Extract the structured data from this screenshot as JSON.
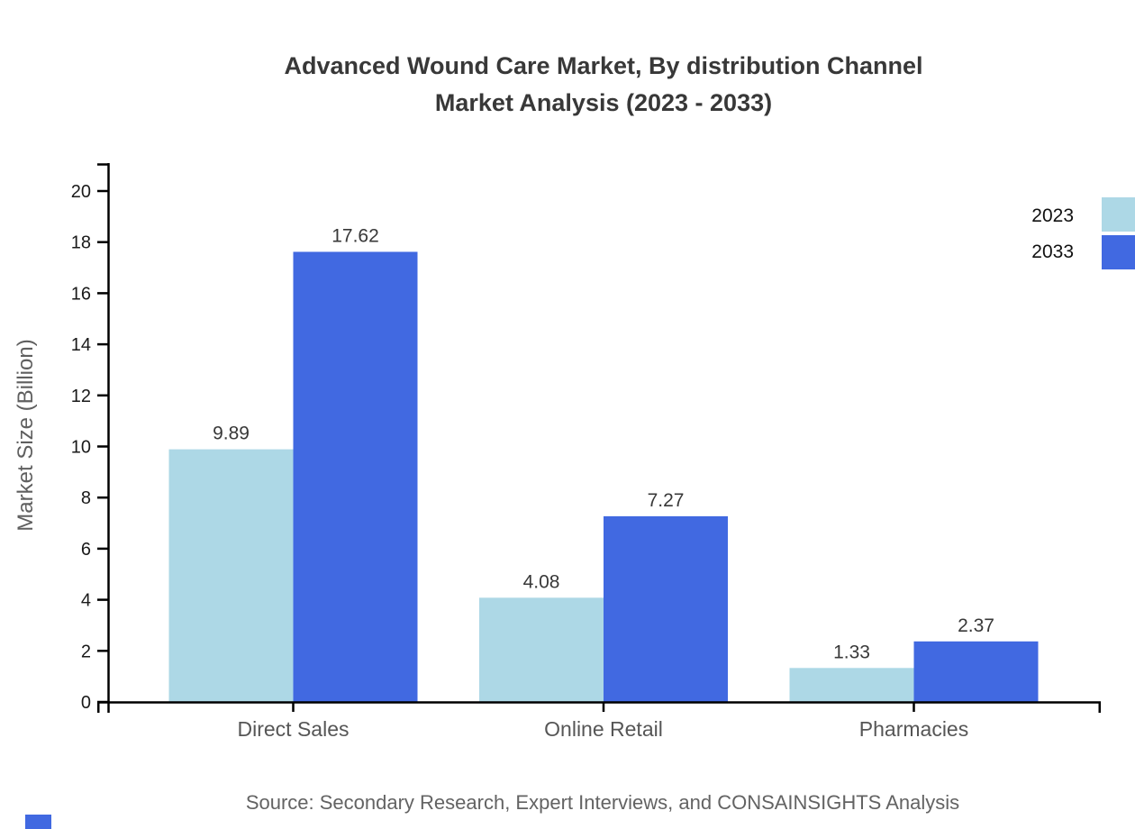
{
  "title": {
    "line1": "Advanced Wound Care Market, By distribution Channel",
    "line2": "Market Analysis (2023 - 2033)"
  },
  "source_note": "Source: Secondary Research, Expert Interviews, and CONSAINSIGHTS Analysis",
  "chart_data": {
    "type": "bar",
    "categories": [
      "Direct Sales",
      "Online Retail",
      "Pharmacies"
    ],
    "series": [
      {
        "name": "2023",
        "color": "#ADD8E6",
        "values": [
          9.89,
          4.08,
          1.33
        ]
      },
      {
        "name": "2033",
        "color": "#4169E1",
        "values": [
          17.62,
          7.27,
          2.37
        ]
      }
    ],
    "title": "Advanced Wound Care Market, By distribution Channel Market Analysis (2023 - 2033)",
    "xlabel": "",
    "ylabel": "Market Size (Billion)",
    "ylim": [
      0,
      20
    ],
    "ytick_step": 2,
    "yticks": [
      0,
      2,
      4,
      6,
      8,
      10,
      12,
      14,
      16,
      18,
      20
    ],
    "grid": false,
    "legend_position": "top-right",
    "legend_labels": [
      "2023",
      "2033"
    ],
    "value_labels": [
      9.89,
      17.62,
      4.08,
      7.27,
      1.33,
      2.37
    ]
  },
  "colors": {
    "series_2023": "#ADD8E6",
    "series_2033": "#4169E1",
    "axis": "#000000",
    "tick_label": "#1a1a1a",
    "category_label": "#565656",
    "value_label": "#383838",
    "axis_title": "#5f5f5f",
    "title_text": "#383838",
    "source_text": "#636363",
    "logo_fragment": "#4169E1"
  }
}
